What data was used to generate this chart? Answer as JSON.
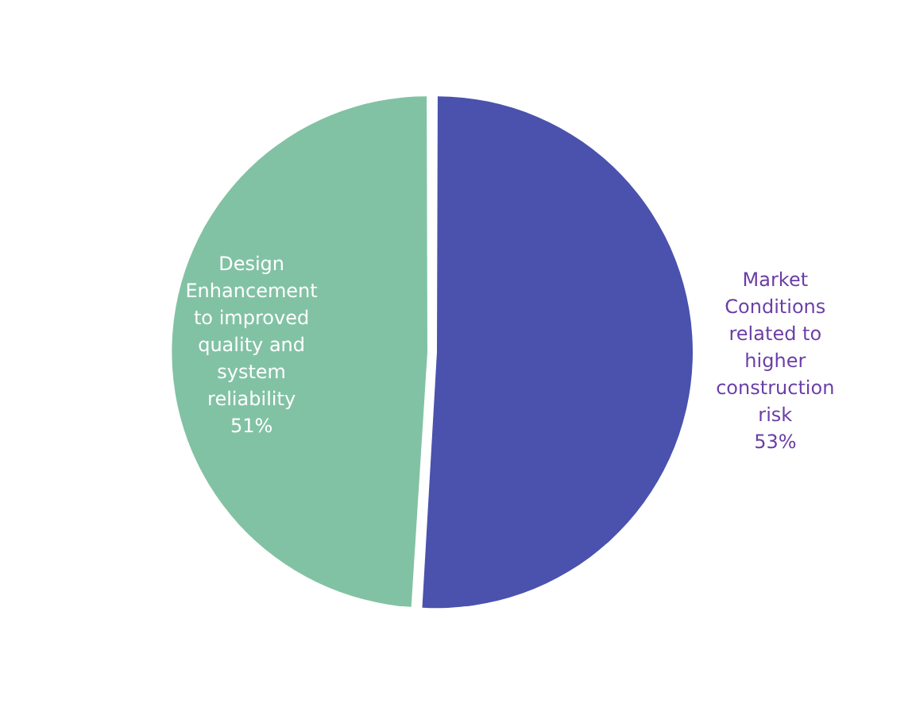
{
  "chart_data": {
    "type": "pie",
    "categories": [
      "Market Conditions related to higher construction risk",
      "Design Enhancement to improved quality and system reliability"
    ],
    "values": [
      53,
      51
    ],
    "colors": [
      "#4a52ad",
      "#82c2a4"
    ],
    "value_labels": [
      "53%",
      "51%"
    ],
    "legend": false
  }
}
